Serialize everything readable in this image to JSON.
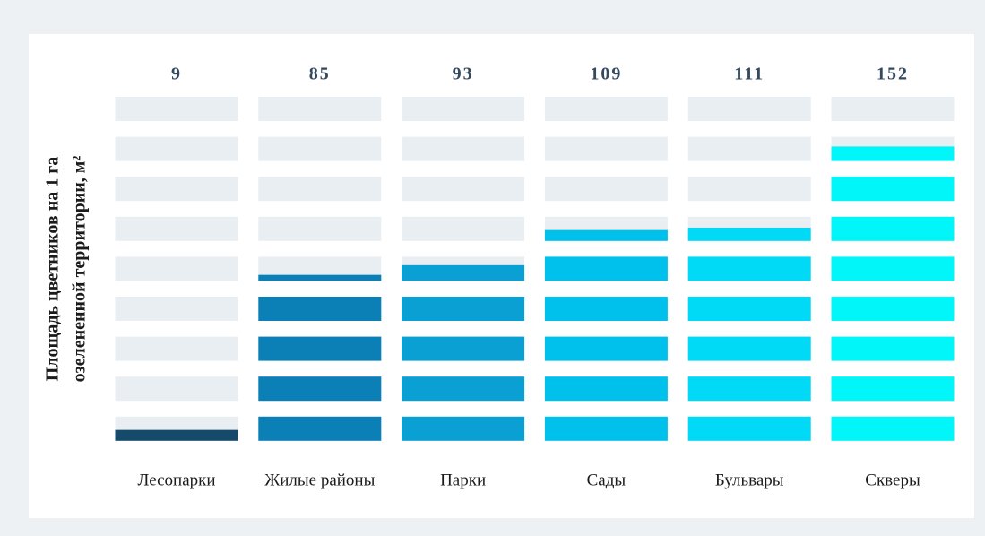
{
  "chart_data": {
    "type": "segmented-bar",
    "ylabel": [
      "Площадь цветников на 1 га",
      "озелененной территории, м²"
    ],
    "categories": [
      "Лесопарки",
      "Жилые районы",
      "Парки",
      "Сады",
      "Бульвары",
      "Скверы"
    ],
    "values": [
      9,
      85,
      93,
      109,
      111,
      152
    ],
    "colors": [
      "#164a6b",
      "#0a80b6",
      "#0aa0d4",
      "#00c1ec",
      "#00daf7",
      "#00f6f8"
    ],
    "ylim": [
      0,
      180
    ]
  }
}
